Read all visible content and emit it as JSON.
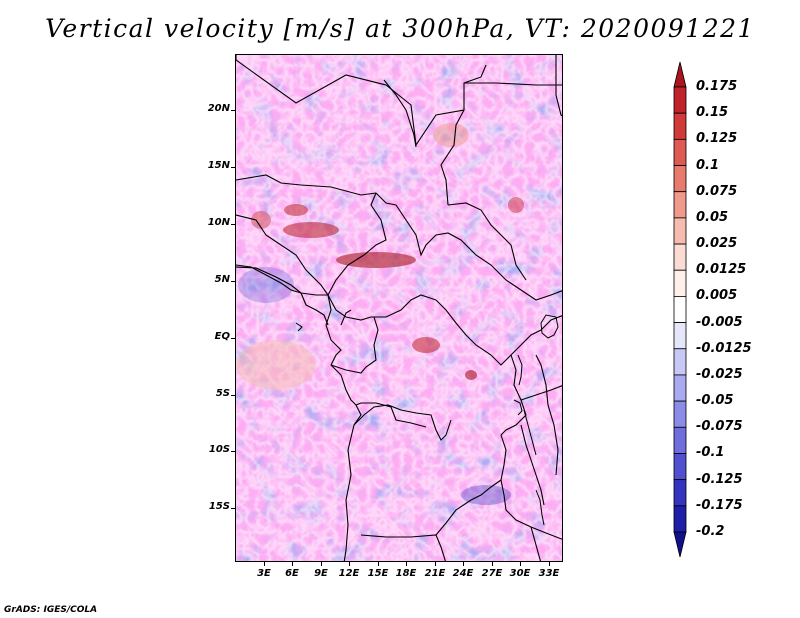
{
  "title": "Vertical velocity [m/s] at 300hPa, VT: 2020091221",
  "credit": "GrADS: IGES/COLA",
  "lat_labels": [
    "20N",
    "15N",
    "10N",
    "5N",
    "EQ",
    "5S",
    "10S",
    "15S"
  ],
  "lon_labels": [
    "3E",
    "6E",
    "9E",
    "12E",
    "15E",
    "18E",
    "21E",
    "24E",
    "27E",
    "30E",
    "33E"
  ],
  "colorbar": {
    "labels": [
      "0.175",
      "0.15",
      "0.125",
      "0.1",
      "0.075",
      "0.05",
      "0.025",
      "0.0125",
      "0.005",
      "-0.005",
      "-0.0125",
      "-0.025",
      "-0.05",
      "-0.075",
      "-0.1",
      "-0.125",
      "-0.175",
      "-0.2"
    ],
    "colors": [
      "#a8151e",
      "#c0242a",
      "#d23a3a",
      "#de5a52",
      "#e87a6e",
      "#f09a8c",
      "#f6bcb0",
      "#fbdcd4",
      "#fff0ec",
      "#ffffff",
      "#e6e6fb",
      "#c8c8f6",
      "#aaaaf0",
      "#8c8ce8",
      "#6e6ede",
      "#5050d0",
      "#3434c0",
      "#1e1ea8",
      "#120f8c"
    ]
  }
}
